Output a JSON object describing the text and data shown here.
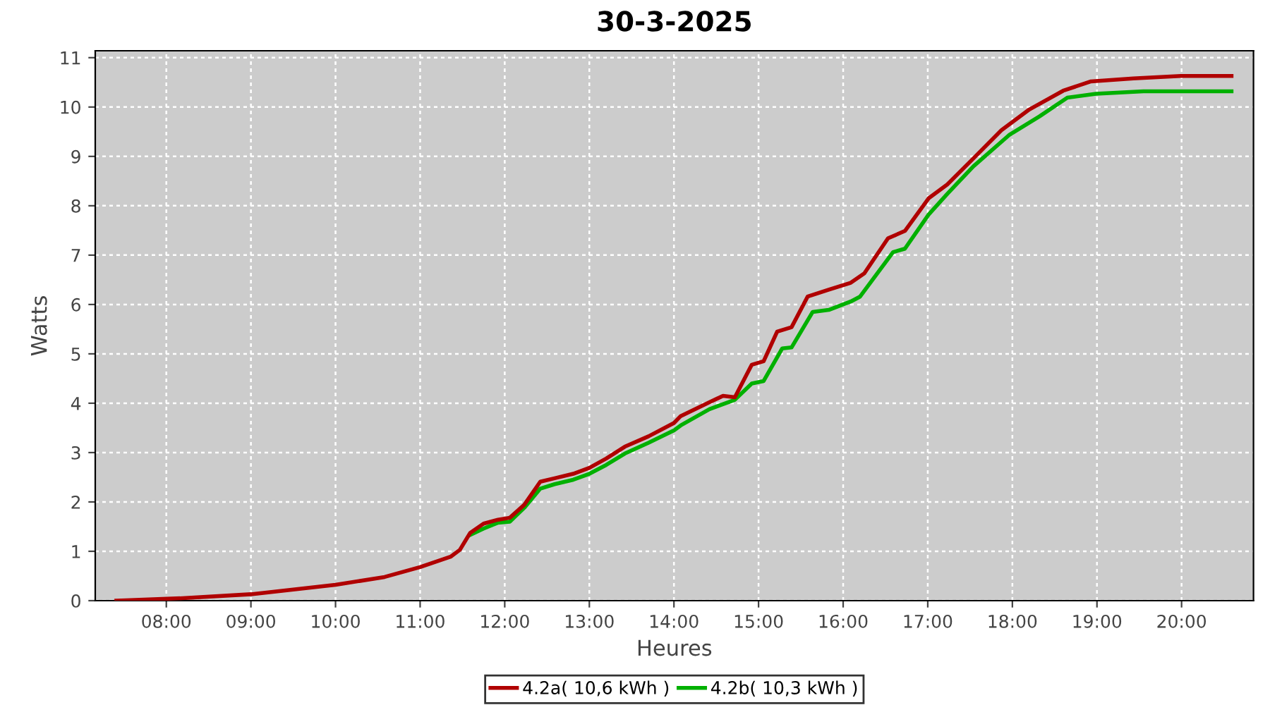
{
  "chart_data": {
    "type": "line",
    "title": "30-3-2025",
    "xlabel": "Heures",
    "ylabel": "Watts",
    "xlim": [
      7.16,
      20.85
    ],
    "xticks": [
      {
        "value": 8,
        "label": "08:00"
      },
      {
        "value": 9,
        "label": "09:00"
      },
      {
        "value": 10,
        "label": "10:00"
      },
      {
        "value": 11,
        "label": "11:00"
      },
      {
        "value": 12,
        "label": "12:00"
      },
      {
        "value": 13,
        "label": "13:00"
      },
      {
        "value": 14,
        "label": "14:00"
      },
      {
        "value": 15,
        "label": "15:00"
      },
      {
        "value": 16,
        "label": "16:00"
      },
      {
        "value": 17,
        "label": "17:00"
      },
      {
        "value": 18,
        "label": "18:00"
      },
      {
        "value": 19,
        "label": "19:00"
      },
      {
        "value": 20,
        "label": "20:00"
      }
    ],
    "ylim": [
      0,
      11.14
    ],
    "yticks": [
      0,
      1,
      2,
      3,
      4,
      5,
      6,
      7,
      8,
      9,
      10,
      11
    ],
    "grid": true,
    "legend": "bottom",
    "marker": "none",
    "line_style": "solid",
    "series": [
      {
        "name": "4.2a( 10,6 kWh )",
        "color": "#b00000",
        "x": [
          7.41,
          8.19,
          9.0,
          10.0,
          10.58,
          11.0,
          11.36,
          11.47,
          11.59,
          11.75,
          11.92,
          12.06,
          12.23,
          12.42,
          12.59,
          12.81,
          13.0,
          13.2,
          13.42,
          13.7,
          14.0,
          14.08,
          14.42,
          14.58,
          14.72,
          14.92,
          15.06,
          15.22,
          15.39,
          15.58,
          15.83,
          16.09,
          16.25,
          16.53,
          16.73,
          17.01,
          17.23,
          17.54,
          17.87,
          18.2,
          18.6,
          18.93,
          19.43,
          19.99,
          20.59
        ],
        "values": [
          0,
          0.05,
          0.13,
          0.32,
          0.48,
          0.68,
          0.89,
          1.03,
          1.37,
          1.56,
          1.64,
          1.68,
          1.94,
          2.41,
          2.48,
          2.57,
          2.69,
          2.88,
          3.12,
          3.33,
          3.6,
          3.74,
          4.02,
          4.15,
          4.12,
          4.78,
          4.85,
          5.45,
          5.54,
          6.16,
          6.3,
          6.44,
          6.63,
          7.34,
          7.49,
          8.15,
          8.43,
          8.96,
          9.53,
          9.95,
          10.33,
          10.52,
          10.58,
          10.63,
          10.63
        ]
      },
      {
        "name": "4.2b( 10,3 kWh )",
        "color": "#00b000",
        "x": [
          11.59,
          11.75,
          11.92,
          12.06,
          12.23,
          12.42,
          12.59,
          12.81,
          13.0,
          13.2,
          13.42,
          13.7,
          14.0,
          14.08,
          14.42,
          14.72,
          14.92,
          15.06,
          15.28,
          15.39,
          15.64,
          15.83,
          16.09,
          16.2,
          16.59,
          16.73,
          17.01,
          17.23,
          17.54,
          17.96,
          18.32,
          18.65,
          18.99,
          19.55,
          20.59
        ],
        "values": [
          1.33,
          1.46,
          1.58,
          1.6,
          1.88,
          2.27,
          2.36,
          2.45,
          2.57,
          2.75,
          2.98,
          3.2,
          3.45,
          3.55,
          3.88,
          4.07,
          4.4,
          4.45,
          5.11,
          5.13,
          5.85,
          5.89,
          6.06,
          6.16,
          7.06,
          7.13,
          7.82,
          8.24,
          8.8,
          9.43,
          9.81,
          10.19,
          10.27,
          10.32,
          10.32
        ]
      }
    ]
  }
}
